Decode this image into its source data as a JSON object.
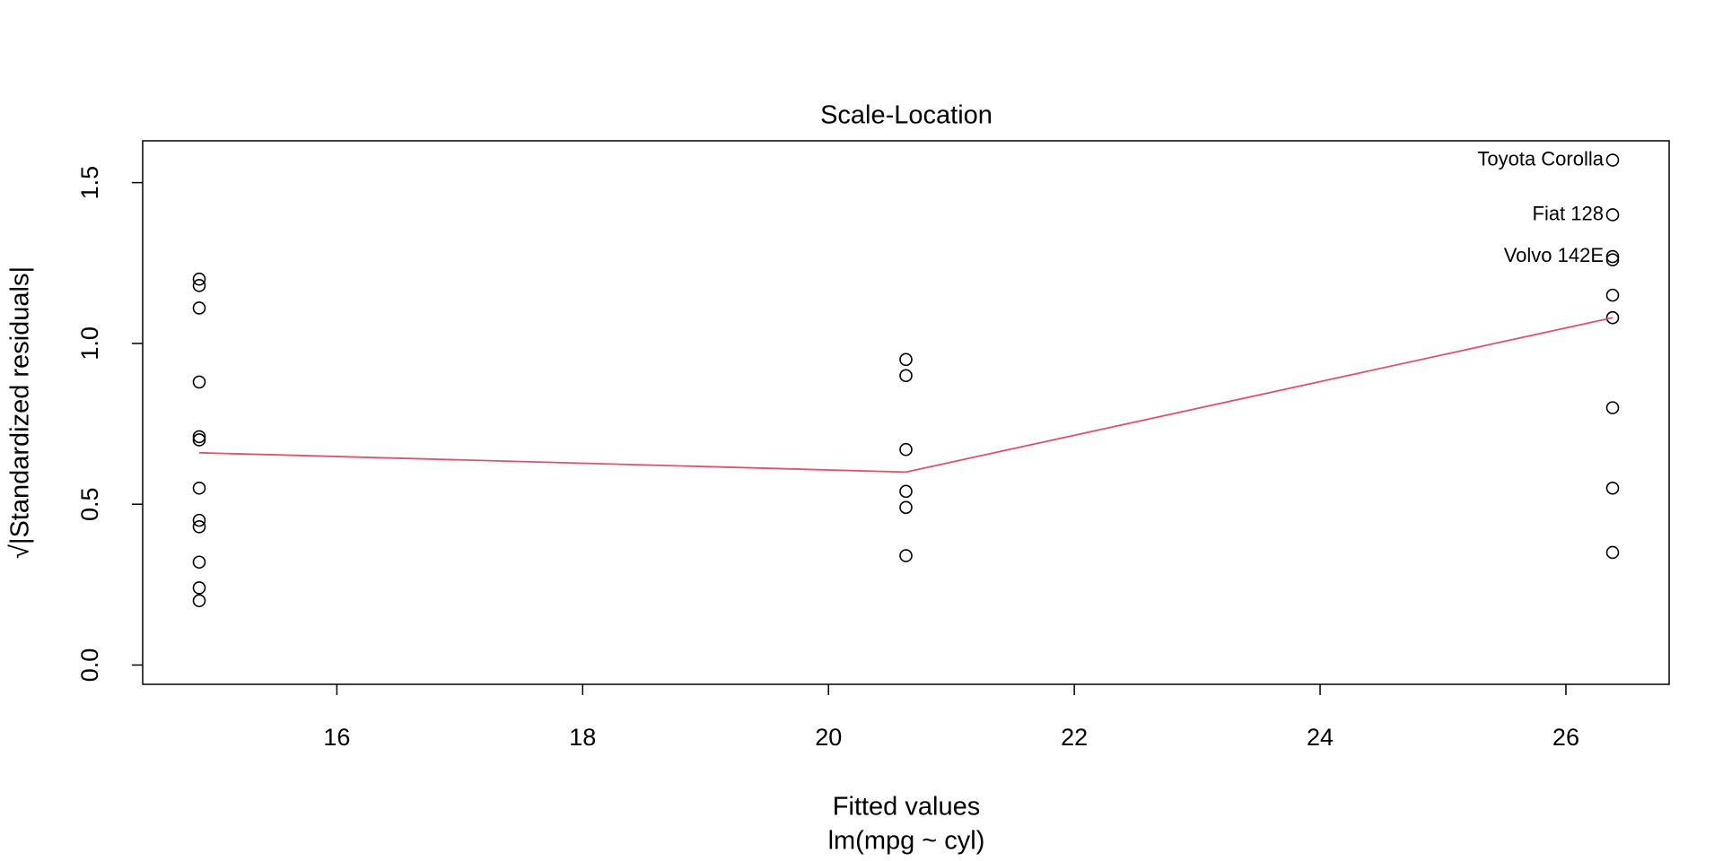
{
  "chart_data": {
    "type": "scatter",
    "title": "Scale-Location",
    "xlabel": "Fitted values",
    "subtitle": "lm(mpg ~ cyl)",
    "ylabel": "√|Standardized residuals|",
    "x": [
      14.88,
      14.88,
      14.88,
      14.88,
      14.88,
      14.88,
      14.88,
      14.88,
      14.88,
      14.88,
      14.88,
      14.88,
      20.63,
      20.63,
      20.63,
      20.63,
      20.63,
      20.63,
      26.38,
      26.38,
      26.38,
      26.38,
      26.38,
      26.38,
      26.38,
      26.38,
      26.38
    ],
    "values": [
      1.2,
      1.18,
      1.11,
      0.88,
      0.71,
      0.7,
      0.55,
      0.45,
      0.43,
      0.32,
      0.24,
      0.2,
      0.95,
      0.9,
      0.67,
      0.54,
      0.49,
      0.34,
      1.57,
      1.4,
      1.27,
      1.26,
      1.15,
      1.08,
      0.8,
      0.55,
      0.35
    ],
    "point_labels": [
      null,
      null,
      null,
      null,
      null,
      null,
      null,
      null,
      null,
      null,
      null,
      null,
      null,
      null,
      null,
      null,
      null,
      null,
      "Toyota Corolla",
      "Fiat 128",
      "Volvo 142E",
      null,
      null,
      null,
      null,
      null,
      null
    ],
    "color": "#000000",
    "smooth": {
      "color": "#DF536B",
      "x": [
        14.88,
        20.63,
        26.38
      ],
      "values": [
        0.66,
        0.6,
        1.08
      ]
    },
    "xlim": [
      14.42,
      26.84
    ],
    "ylim": [
      -0.06,
      1.63
    ],
    "xticks": [
      16,
      18,
      20,
      22,
      24,
      26
    ],
    "yticks": [
      {
        "value": 0,
        "label": "0.0"
      },
      0.5,
      {
        "value": 1,
        "label": "1.0"
      },
      1.5
    ],
    "grid": false
  }
}
